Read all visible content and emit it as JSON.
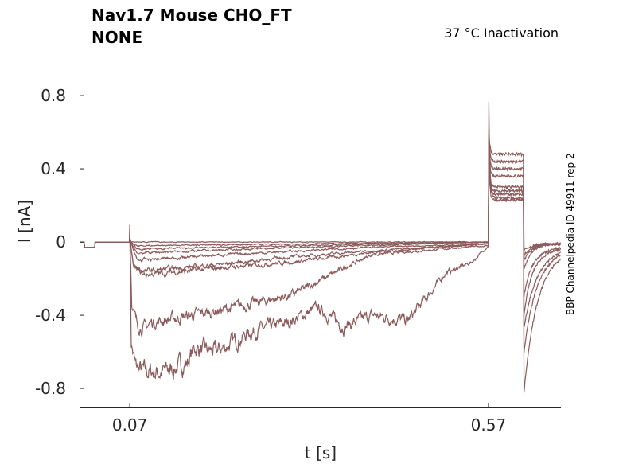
{
  "chart_data": {
    "type": "line",
    "title_line1": "Nav1.7  Mouse  CHO_FT",
    "title_line2": "NONE",
    "subtitle": "37 °C  Inactivation",
    "side_label": "BBP Channelpedia ID 49911 rep 2",
    "xlabel": "t [s]",
    "ylabel": "I [nA]",
    "xlim": [
      0,
      0.671
    ],
    "ylim": [
      -0.904,
      1.135
    ],
    "xticks": [
      {
        "v": 0.07,
        "label": "0.07"
      },
      {
        "v": 0.57,
        "label": "0.57"
      }
    ],
    "yticks": [
      {
        "v": 0.8,
        "label": "0.8"
      },
      {
        "v": 0.4,
        "label": "0.4"
      },
      {
        "v": 0,
        "label": "0"
      },
      {
        "v": -0.4,
        "label": "-0.4"
      },
      {
        "v": -0.8,
        "label": "-0.8"
      }
    ],
    "color": "#8b5a5a",
    "peak_at_step": 0.97,
    "series": [
      {
        "name": "trace 1",
        "main": [
          [
            0.07,
            0.1
          ],
          [
            0.072,
            -0.55
          ],
          [
            0.078,
            -0.68
          ],
          [
            0.09,
            -0.71
          ],
          [
            0.12,
            -0.71
          ],
          [
            0.15,
            -0.66
          ],
          [
            0.16,
            -0.58
          ],
          [
            0.19,
            -0.6
          ],
          [
            0.24,
            -0.49
          ],
          [
            0.29,
            -0.44
          ],
          [
            0.332,
            -0.36
          ],
          [
            0.369,
            -0.46
          ],
          [
            0.41,
            -0.4
          ],
          [
            0.458,
            -0.43
          ],
          [
            0.48,
            -0.32
          ],
          [
            0.51,
            -0.17
          ],
          [
            0.547,
            -0.11
          ],
          [
            0.57,
            -0.02
          ]
        ],
        "step": 0.24,
        "tail": -0.62
      },
      {
        "name": "trace 2",
        "main": [
          [
            0.07,
            0.05
          ],
          [
            0.073,
            -0.35
          ],
          [
            0.08,
            -0.45
          ],
          [
            0.091,
            -0.47
          ],
          [
            0.1,
            -0.44
          ],
          [
            0.2,
            -0.37
          ],
          [
            0.296,
            -0.29
          ],
          [
            0.369,
            -0.14
          ],
          [
            0.407,
            -0.07
          ],
          [
            0.5,
            -0.04
          ],
          [
            0.57,
            -0.02
          ]
        ],
        "step": 0.26,
        "tail": -0.45
      },
      {
        "name": "trace 3",
        "main": [
          [
            0.07,
            0.03
          ],
          [
            0.075,
            -0.14
          ],
          [
            0.09,
            -0.18
          ],
          [
            0.2,
            -0.14
          ],
          [
            0.296,
            -0.11
          ],
          [
            0.4,
            -0.06
          ],
          [
            0.5,
            -0.03
          ],
          [
            0.57,
            -0.01
          ]
        ],
        "step": 0.23,
        "tail": -0.35
      },
      {
        "name": "trace 4",
        "main": [
          [
            0.07,
            0.02
          ],
          [
            0.075,
            -0.13
          ],
          [
            0.09,
            -0.16
          ],
          [
            0.2,
            -0.12
          ],
          [
            0.3,
            -0.08
          ],
          [
            0.4,
            -0.05
          ],
          [
            0.57,
            -0.01
          ]
        ],
        "step": 0.28,
        "tail": -0.3
      },
      {
        "name": "trace 5",
        "main": [
          [
            0.07,
            0.02
          ],
          [
            0.08,
            -0.1
          ],
          [
            0.2,
            -0.07
          ],
          [
            0.4,
            -0.03
          ],
          [
            0.57,
            -0.01
          ]
        ],
        "step": 0.3,
        "tail": -0.22
      },
      {
        "name": "trace 6",
        "main": [
          [
            0.07,
            0.01
          ],
          [
            0.08,
            -0.06
          ],
          [
            0.3,
            -0.03
          ],
          [
            0.57,
            0
          ]
        ],
        "step": 0.36,
        "tail": -0.15
      },
      {
        "name": "trace 7",
        "main": [
          [
            0.07,
            0.01
          ],
          [
            0.08,
            -0.04
          ],
          [
            0.3,
            -0.02
          ],
          [
            0.57,
            0
          ]
        ],
        "step": 0.4,
        "tail": -0.1
      },
      {
        "name": "trace 8",
        "main": [
          [
            0.07,
            0
          ],
          [
            0.08,
            -0.02
          ],
          [
            0.57,
            0
          ]
        ],
        "step": 0.44,
        "tail": -0.07
      },
      {
        "name": "trace 9",
        "main": [
          [
            0.07,
            0
          ],
          [
            0.57,
            0
          ]
        ],
        "step": 0.48,
        "tail": -0.04
      }
    ]
  }
}
